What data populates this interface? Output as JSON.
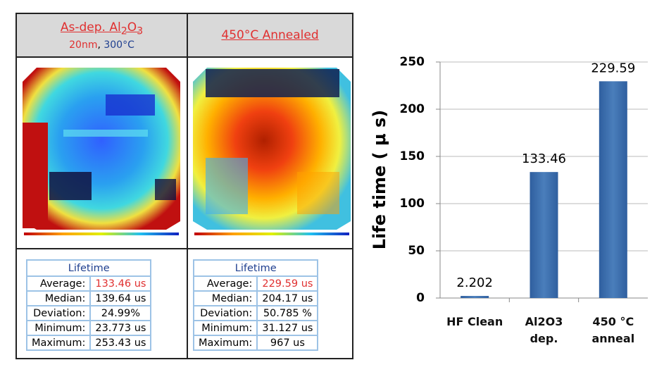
{
  "panels": [
    {
      "title_parts": [
        {
          "text": "As-dep. Al"
        },
        {
          "text": "2",
          "sub": true
        },
        {
          "text": "O"
        },
        {
          "text": "3",
          "sub": true
        }
      ],
      "subtitle_parts": [
        {
          "text": "20nm",
          "color": "#e03030"
        },
        {
          "text": ", "
        },
        {
          "text": "300°C",
          "color": "#1f3f8f"
        }
      ],
      "table": {
        "header": "Lifetime",
        "rows": [
          [
            "Average:",
            "133.46 us"
          ],
          [
            "Median:",
            "139.64 us"
          ],
          [
            "Deviation:",
            "24.99%"
          ],
          [
            "Minimum:",
            "23.773 us"
          ],
          [
            "Maximum:",
            "253.43 us"
          ]
        ]
      }
    },
    {
      "title_parts": [
        {
          "text": "450°C Annealed"
        }
      ],
      "table": {
        "header": "Lifetime",
        "rows": [
          [
            "Average:",
            "229.59 us"
          ],
          [
            "Median:",
            "204.17 us"
          ],
          [
            "Deviation:",
            "50.785 %"
          ],
          [
            "Minimum:",
            "31.127 us"
          ],
          [
            "Maximum:",
            "967 us"
          ]
        ]
      }
    }
  ],
  "chart_data": {
    "type": "bar",
    "y_label": "Life time ( μ s)",
    "categories": [
      "HF Clean",
      "Al2O3 dep.",
      "450 °C anneal"
    ],
    "values": [
      2.202,
      133.46,
      229.59
    ],
    "color": "#4a7ebb",
    "ylim": [
      0,
      250
    ],
    "yticks": [
      0,
      50,
      100,
      150,
      200,
      250
    ],
    "grid": true
  }
}
